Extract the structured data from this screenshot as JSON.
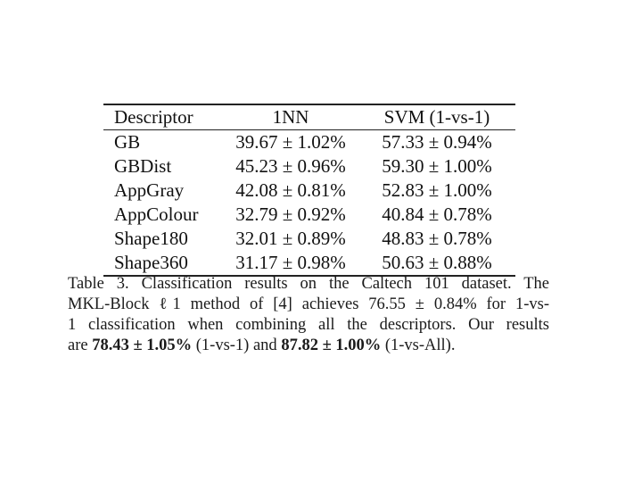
{
  "table": {
    "headers": [
      "Descriptor",
      "1NN",
      "SVM (1-vs-1)"
    ],
    "rows": [
      {
        "descriptor": "GB",
        "nn": "39.67 ± 1.02%",
        "svm": "57.33 ± 0.94%"
      },
      {
        "descriptor": "GBDist",
        "nn": "45.23 ± 0.96%",
        "svm": "59.30 ± 1.00%"
      },
      {
        "descriptor": "AppGray",
        "nn": "42.08 ± 0.81%",
        "svm": "52.83 ± 1.00%"
      },
      {
        "descriptor": "AppColour",
        "nn": "32.79 ± 0.92%",
        "svm": "40.84 ± 0.78%"
      },
      {
        "descriptor": "Shape180",
        "nn": "32.01 ± 0.89%",
        "svm": "48.83 ± 0.78%"
      },
      {
        "descriptor": "Shape360",
        "nn": "31.17 ± 0.98%",
        "svm": "50.63 ± 0.88%"
      }
    ]
  },
  "caption": {
    "line1": "Table 3. Classification results on the Caltech 101 dataset. The",
    "line2": "MKL-Block ℓ1 method of [4] achieves 76.55 ± 0.84% for 1-vs-",
    "line3": "1 classification when combining all the descriptors. Our results",
    "line4_prefix": "are ",
    "line4_bold1": "78.43 ± 1.05%",
    "line4_mid": " (1-vs-1) and ",
    "line4_bold2": "87.82 ± 1.00%",
    "line4_suffix": " (1-vs-All)."
  }
}
